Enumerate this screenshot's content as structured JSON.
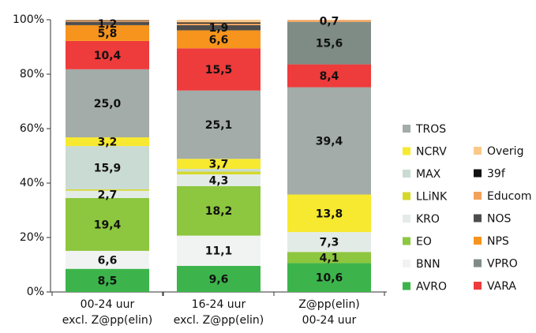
{
  "chart_data": {
    "type": "bar",
    "stacked": true,
    "categories": [
      [
        "00-24 uur",
        "excl. Z@pp(elin)"
      ],
      [
        "16-24 uur",
        "excl. Z@pp(elin)"
      ],
      [
        "Z@pp(elin)",
        "00-24 uur"
      ]
    ],
    "ylim": [
      0,
      100
    ],
    "yticks": [
      {
        "value": 0,
        "label": "0%"
      },
      {
        "value": 20,
        "label": "20%"
      },
      {
        "value": 40,
        "label": "40%"
      },
      {
        "value": 60,
        "label": "60%"
      },
      {
        "value": 80,
        "label": "80%"
      },
      {
        "value": 100,
        "label": "100%"
      }
    ],
    "series": [
      {
        "name": "AVRO",
        "color": "#3cb44b",
        "values": [
          8.5,
          9.6,
          10.6
        ],
        "value_labels": [
          "8,5",
          "9,6",
          "10,6"
        ]
      },
      {
        "name": "BNN",
        "color": "#f1f3f2",
        "values": [
          6.6,
          11.1,
          0
        ],
        "value_labels": [
          "6,6",
          "11,1",
          null
        ]
      },
      {
        "name": "EO",
        "color": "#8dc63f",
        "values": [
          19.4,
          18.2,
          4.1
        ],
        "value_labels": [
          "19,4",
          "18,2",
          "4,1"
        ]
      },
      {
        "name": "KRO",
        "color": "#e3ebe7",
        "values": [
          2.7,
          4.3,
          7.3
        ],
        "value_labels": [
          "2,7",
          "4,3",
          "7,3"
        ]
      },
      {
        "name": "LLiNK",
        "color": "#d4d92a",
        "values": [
          0.5,
          1.0,
          0
        ],
        "value_labels": [
          null,
          null,
          null
        ]
      },
      {
        "name": "MAX",
        "color": "#c9dbd3",
        "values": [
          15.9,
          1.0,
          0
        ],
        "value_labels": [
          "15,9",
          null,
          null
        ]
      },
      {
        "name": "NCRV",
        "color": "#f7e930",
        "values": [
          3.2,
          3.7,
          13.8
        ],
        "value_labels": [
          "3,2",
          "3,7",
          "13,8"
        ]
      },
      {
        "name": "TROS",
        "color": "#a3aca8",
        "values": [
          25.0,
          25.1,
          39.4
        ],
        "value_labels": [
          "25,0",
          "25,1",
          "39,4"
        ]
      },
      {
        "name": "VARA",
        "color": "#ee3b3b",
        "values": [
          10.4,
          15.5,
          8.4
        ],
        "value_labels": [
          "10,4",
          "15,5",
          "8,4"
        ]
      },
      {
        "name": "VPRO",
        "color": "#7f8c86",
        "values": [
          0,
          0,
          15.6
        ],
        "value_labels": [
          null,
          null,
          "15,6"
        ]
      },
      {
        "name": "NPS",
        "color": "#f7941d",
        "values": [
          5.8,
          6.6,
          0
        ],
        "value_labels": [
          "5,8",
          "6,6",
          null
        ]
      },
      {
        "name": "NOS",
        "color": "#4d4d4d",
        "values": [
          1.2,
          1.9,
          0
        ],
        "value_labels": [
          "1,2",
          "1,9",
          null
        ]
      },
      {
        "name": "Educom",
        "color": "#f3a15a",
        "values": [
          0.4,
          0.6,
          0.7
        ],
        "value_labels": [
          null,
          null,
          "0,7"
        ]
      },
      {
        "name": "39f",
        "color": "#111111",
        "values": [
          0.2,
          0.4,
          0
        ],
        "value_labels": [
          null,
          null,
          null
        ]
      },
      {
        "name": "Overig",
        "color": "#f9c98a",
        "values": [
          0.2,
          1.0,
          0
        ],
        "value_labels": [
          null,
          null,
          null
        ]
      }
    ]
  }
}
